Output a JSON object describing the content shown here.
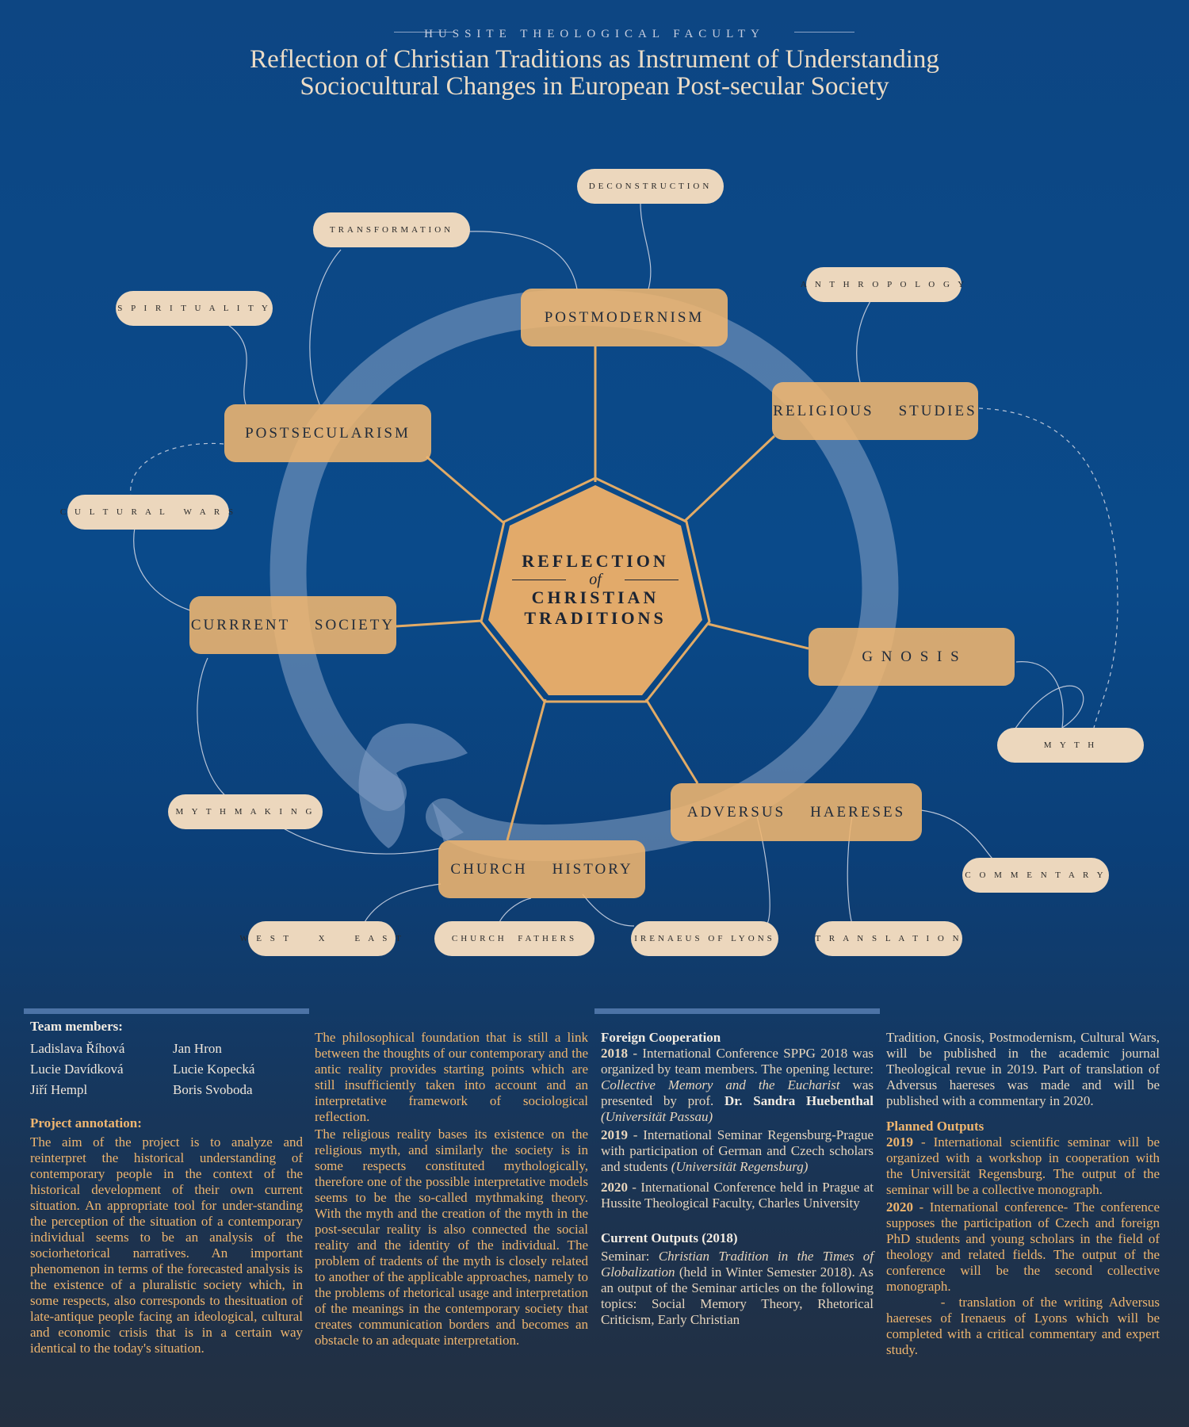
{
  "header": {
    "faculty": "HUSSITE THEOLOGICAL FACULTY",
    "title_line1": "Reflection of Christian Traditions as Instrument of Understanding",
    "title_line2": "Sociocultural Changes in European Post-secular Society"
  },
  "center": {
    "line1": "REFLECTION",
    "of": "of",
    "line2": "CHRISTIAN",
    "line3": "TRADITIONS"
  },
  "nodes": {
    "postmodernism": "POSTMODERNISM",
    "religious_studies": "RELIGIOUS    STUDIES",
    "gnosis": "G N O S I S",
    "adversus": "ADVERSUS    HAERESES",
    "church_history": "CHURCH    HISTORY",
    "current_society": "CURRRENT    SOCIETY",
    "postsecularism": "POSTSECULARISM"
  },
  "tags": {
    "deconstruction": "DECONSTRUCTION",
    "transformation": "TRANSFORMATION",
    "spirituality": "S P I R I T U A L I T Y",
    "anthropology": "A N T H R O P O L O G Y",
    "cultural_wars": "C U L T U R A L   W A R S",
    "myth": "M Y T H",
    "mythmaking": "M Y T H M A K I N G",
    "commentary": "C O M M E N T A R Y",
    "west_east": "W E S T     X     E A S T",
    "church_fathers": "CHURCH  FATHERS",
    "irenaeus": "IRENAEUS OF LYONS",
    "translation": "T R A N S L A T I O N"
  },
  "team": {
    "heading": "Team members:",
    "members": [
      "Ladislava Říhová",
      "Jan Hron",
      "Lucie Davídková",
      "Lucie Kopecká",
      "Jiří Hempl",
      "Boris Svoboda"
    ]
  },
  "annotation": {
    "heading": "Project annotation:",
    "text": "The aim of the project is to analyze and reinterpret the historical understanding of contemporary people in the context of the historical development of their own current situation. An appropriate tool for under-standing the perception of the situation of a contemporary individual seems to be an analysis of the sociorhetorical narratives. An important phenomenon in terms of the forecasted analysis is the existence of a pluralistic society which, in some respects, also corresponds to thesituation of late-antique people facing an ideological, cultural and economic crisis that is in a certain way identical to the today's situation."
  },
  "column2": {
    "p1": " The philosophical foundation that is still a link between the thoughts of our contemporary and the antic reality provides starting points which are still insufficiently taken into account and an interpretative framework of sociological reflection.",
    "p2": "The religious reality bases its existence on the religious myth, and similarly the society is in some respects constituted mythologically, therefore one of the possible interpretative models seems to be the so-called mythmaking theory. With the myth and the creation of the myth in the post-secular reality is also connected the social reality and the identity of the individual. The problem of tradents of the myth is closely related to another of the applicable approaches, namely to the problems of rhetorical usage and interpretation of the meanings in the contemporary society that creates communication borders and becomes an obstacle to an adequate interpretation."
  },
  "foreign": {
    "heading": "Foreign Cooperation",
    "y2018": "2018",
    "t2018a": " - International Conference SPPG 2018 was organized by team members. The opening lecture: ",
    "t2018b": "Collective Memory and the Eucharist",
    "t2018c": " was presented by prof. ",
    "t2018d": "Dr. Sandra Huebenthal",
    "t2018e": " (Universität Passau)",
    "y2019": "2019",
    "t2019a": " - International Seminar Regensburg-Prague with participation of German and Czech scholars and students ",
    "t2019b": "(Universität Regensburg)",
    "y2020": "2020",
    "t2020": " - International Conference held in Prague at Hussite Theological Faculty, Charles University"
  },
  "current": {
    "heading": "Current Outputs (2018)",
    "a": "Seminar: ",
    "b": "Christian Tradition in the Times of Globalization",
    "c": " (held in Winter Semester 2018). As an output of the Seminar articles on the following topics: Social Memory Theory, Rhetorical Criticism, Early Christian"
  },
  "column4": {
    "cont": "Tradition, Gnosis, Postmodernism, Cultural Wars, will be published in the academic journal Theological revue in 2019. Part of translation of Adversus haereses was made and will be published with a commentary in 2020.",
    "heading": "Planned Outputs",
    "y2019": "2019",
    "t2019": " - International scientific seminar will be organized with a workshop in cooperation with the Universität Regensburg. The output of the seminar will be a collective monograph.",
    "y2020": "2020",
    "t2020": " - International conference- The conference supposes the participation of Czech and foreign PhD students and young scholars in the field of theology and related fields. The output of the conference will be the second collective monograph.",
    "t_last": "        -  translation of the writing Adversus haereses of Irenaeus of Lyons which will be completed with a critical commentary and expert study."
  },
  "colors": {
    "node": "#f0b670",
    "tag": "#ecd7bd",
    "background": "#0b4685",
    "accent_orange": "#efb56e"
  }
}
